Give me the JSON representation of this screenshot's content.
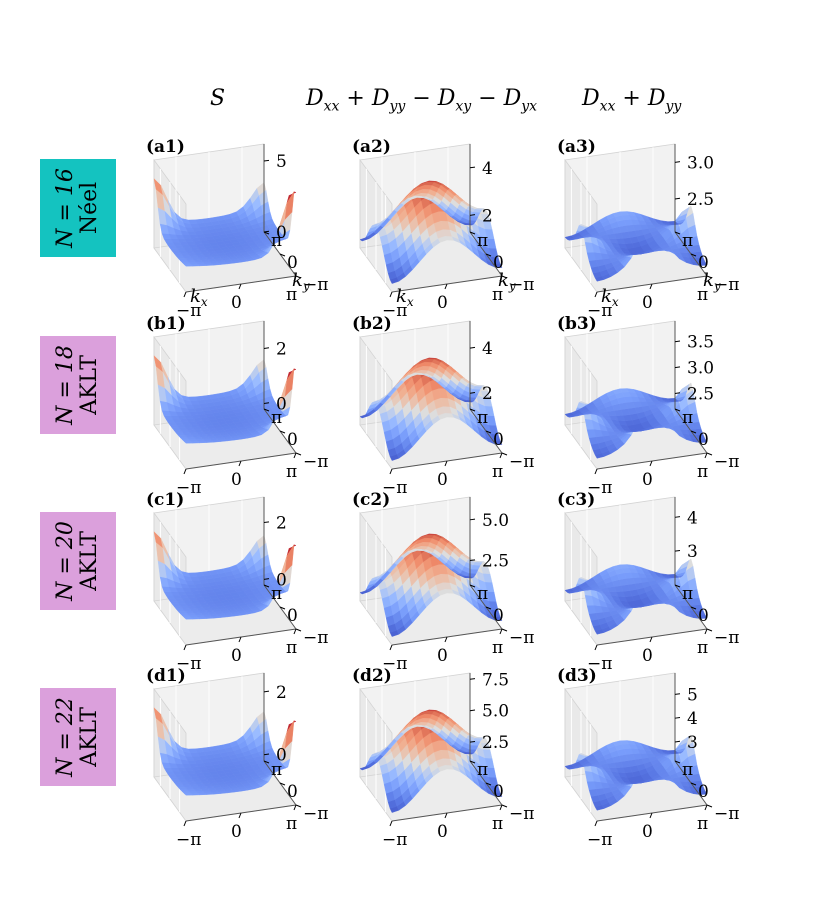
{
  "column_titles": [
    {
      "main": "S"
    },
    {
      "parts": [
        "D",
        "xx",
        " + D",
        "yy",
        " − D",
        "xy",
        " − D",
        "yx"
      ]
    },
    {
      "parts": [
        "D",
        "xx",
        " + D",
        "yy"
      ]
    }
  ],
  "row_labels": [
    {
      "n_text": "N = 16",
      "state": "Néel",
      "color": "#14c3c0"
    },
    {
      "n_text": "N = 18",
      "state": "AKLT",
      "color": "#dba0dc"
    },
    {
      "n_text": "N = 20",
      "state": "AKLT",
      "color": "#dba0dc"
    },
    {
      "n_text": "N = 22",
      "state": "AKLT",
      "color": "#dba0dc"
    }
  ],
  "axis_text": {
    "kx_label": "k",
    "kx_sub": "x",
    "ky_label": "k",
    "ky_sub": "y",
    "x_ticks": [
      "−π",
      "0",
      "π"
    ],
    "y_ticks": [
      "−π",
      "0",
      "π"
    ]
  },
  "colormap": "coolwarm",
  "chart_data": [
    {
      "type": "surface3d",
      "panel_label": "(a1)",
      "quantity": "S",
      "surface": "s",
      "zlim": [
        0,
        6.2
      ],
      "z_ticks": [
        "0",
        "5"
      ],
      "z_tick_values": [
        0,
        5
      ]
    },
    {
      "type": "surface3d",
      "panel_label": "(a2)",
      "quantity": "Dxx+Dyy-Dxy-Dyx",
      "surface": "dome",
      "zlim": [
        1.3,
        5.0
      ],
      "z_ticks": [
        "2",
        "4"
      ],
      "z_tick_values": [
        2,
        4
      ]
    },
    {
      "type": "surface3d",
      "panel_label": "(a3)",
      "quantity": "Dxx+Dyy",
      "surface": "ridges",
      "zlim": [
        2.05,
        3.25
      ],
      "z_ticks": [
        "2.5",
        "3.0"
      ],
      "z_tick_values": [
        2.5,
        3.0
      ]
    },
    {
      "type": "surface3d",
      "panel_label": "(b1)",
      "quantity": "S",
      "surface": "s",
      "zlim": [
        -0.2,
        3.0
      ],
      "z_ticks": [
        "0",
        "2"
      ],
      "z_tick_values": [
        0,
        2
      ]
    },
    {
      "type": "surface3d",
      "panel_label": "(b2)",
      "quantity": "Dxx+Dyy-Dxy-Dyx",
      "surface": "dome",
      "zlim": [
        1.3,
        5.2
      ],
      "z_ticks": [
        "2",
        "4"
      ],
      "z_tick_values": [
        2,
        4
      ]
    },
    {
      "type": "surface3d",
      "panel_label": "(b3)",
      "quantity": "Dxx+Dyy",
      "surface": "ridges",
      "zlim": [
        2.2,
        3.9
      ],
      "z_ticks": [
        "2.5",
        "3.0",
        "3.5"
      ],
      "z_tick_values": [
        2.5,
        3.0,
        3.5
      ]
    },
    {
      "type": "surface3d",
      "panel_label": "(c1)",
      "quantity": "S",
      "surface": "s",
      "zlim": [
        -0.2,
        2.9
      ],
      "z_ticks": [
        "0",
        "2"
      ],
      "z_tick_values": [
        0,
        2
      ]
    },
    {
      "type": "surface3d",
      "panel_label": "(c2)",
      "quantity": "Dxx+Dyy-Dxy-Dyx",
      "surface": "dome",
      "zlim": [
        1.0,
        6.4
      ],
      "z_ticks": [
        "2.5",
        "5.0"
      ],
      "z_tick_values": [
        2.5,
        5.0
      ]
    },
    {
      "type": "surface3d",
      "panel_label": "(c3)",
      "quantity": "Dxx+Dyy",
      "surface": "ridges",
      "zlim": [
        2.0,
        4.6
      ],
      "z_ticks": [
        "3",
        "4"
      ],
      "z_tick_values": [
        3,
        4
      ]
    },
    {
      "type": "surface3d",
      "panel_label": "(d1)",
      "quantity": "S",
      "surface": "s",
      "zlim": [
        -0.2,
        2.6
      ],
      "z_ticks": [
        "0",
        "2"
      ],
      "z_tick_values": [
        0,
        2
      ]
    },
    {
      "type": "surface3d",
      "panel_label": "(d2)",
      "quantity": "Dxx+Dyy-Dxy-Dyx",
      "surface": "dome",
      "zlim": [
        1.0,
        8.0
      ],
      "z_ticks": [
        "2.5",
        "5.0",
        "7.5"
      ],
      "z_tick_values": [
        2.5,
        5.0,
        7.5
      ]
    },
    {
      "type": "surface3d",
      "panel_label": "(d3)",
      "quantity": "Dxx+Dyy",
      "surface": "ridges",
      "zlim": [
        2.2,
        5.9
      ],
      "z_ticks": [
        "3",
        "4",
        "5"
      ],
      "z_tick_values": [
        3,
        4,
        5
      ]
    }
  ]
}
